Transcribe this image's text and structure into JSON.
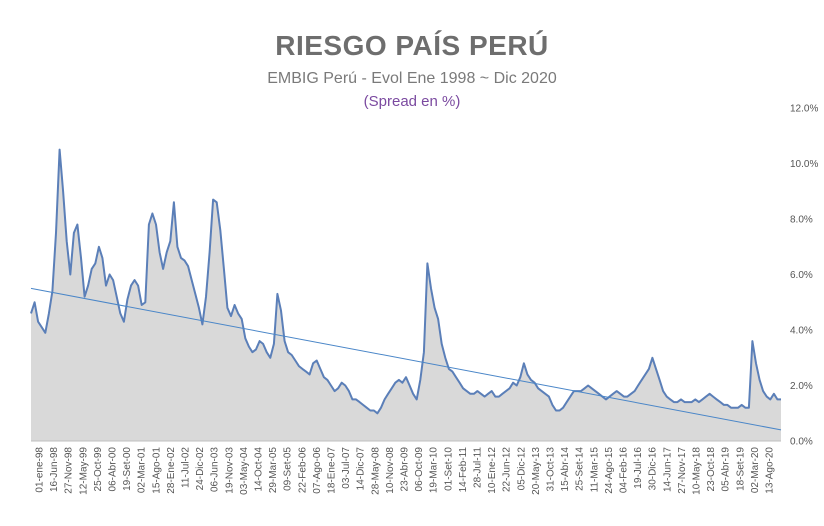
{
  "chart_data": {
    "type": "area",
    "title": "RIESGO PAÍS PERÚ",
    "subtitle": "EMBIG Perú - Evol Ene 1998 ~ Dic 2020",
    "subtitle2": "(Spread en %)",
    "xlabel": "",
    "ylabel": "",
    "ylim": [
      0,
      12
    ],
    "y_ticks": [
      "0.0%",
      "2.0%",
      "4.0%",
      "6.0%",
      "8.0%",
      "10.0%",
      "12.0%"
    ],
    "x_ticks": [
      "01-ene-98",
      "16-Jun-98",
      "27-Nov-98",
      "12-May-99",
      "25-Oct-99",
      "06-Abr-00",
      "19-Set-00",
      "02-Mar-01",
      "15-Ago-01",
      "28-Ene-02",
      "11-Jul-02",
      "24-Dic-02",
      "06-Jun-03",
      "19-Nov-03",
      "03-May-04",
      "14-Oct-04",
      "29-Mar-05",
      "09-Set-05",
      "22-Feb-06",
      "07-Ago-06",
      "18-Ene-07",
      "03-Jul-07",
      "14-Dic-07",
      "28-May-08",
      "10-Nov-08",
      "23-Abr-09",
      "06-Oct-09",
      "19-Mar-10",
      "01-Set-10",
      "14-Feb-11",
      "28-Jul-11",
      "10-Ene-12",
      "22-Jun-12",
      "05-Dic-12",
      "20-May-13",
      "31-Oct-13",
      "15-Abr-14",
      "25-Set-14",
      "11-Mar-15",
      "24-Ago-15",
      "04-Feb-16",
      "19-Jul-16",
      "30-Dic-16",
      "14-Jun-17",
      "27-Nov-17",
      "10-May-18",
      "23-Oct-18",
      "05-Abr-19",
      "18-Set-19",
      "02-Mar-20",
      "13-Ago-20"
    ],
    "trendline": {
      "start": 5.5,
      "end": 0.4
    },
    "grid": false,
    "legend": "none",
    "colors": {
      "line": "#5b7fb8",
      "area": "#d9d9d9",
      "trend": "#4a86c8"
    },
    "series": [
      {
        "values": [
          4.6,
          5.0,
          4.3,
          4.1,
          3.9,
          4.6,
          5.4,
          7.5,
          10.5,
          9.0,
          7.2,
          6.0,
          7.5,
          7.8,
          6.6,
          5.2,
          5.6,
          6.2,
          6.4,
          7.0,
          6.6,
          5.6,
          6.0,
          5.8,
          5.2,
          4.6,
          4.3,
          5.1,
          5.6,
          5.8,
          5.6,
          4.9,
          5.0,
          7.8,
          8.2,
          7.8,
          6.8,
          6.2,
          6.8,
          7.2,
          8.6,
          7.0,
          6.6,
          6.5,
          6.3,
          5.8,
          5.3,
          4.8,
          4.2,
          5.2,
          6.8,
          8.7,
          8.6,
          7.6,
          6.2,
          4.8,
          4.5,
          4.9,
          4.6,
          4.4,
          3.7,
          3.4,
          3.2,
          3.3,
          3.6,
          3.5,
          3.2,
          3.0,
          3.5,
          5.3,
          4.7,
          3.6,
          3.2,
          3.1,
          2.9,
          2.7,
          2.6,
          2.5,
          2.4,
          2.8,
          2.9,
          2.6,
          2.3,
          2.2,
          2.0,
          1.8,
          1.9,
          2.1,
          2.0,
          1.8,
          1.5,
          1.5,
          1.4,
          1.3,
          1.2,
          1.1,
          1.1,
          1.0,
          1.2,
          1.5,
          1.7,
          1.9,
          2.1,
          2.2,
          2.1,
          2.3,
          2.0,
          1.7,
          1.5,
          2.2,
          3.2,
          6.4,
          5.5,
          4.8,
          4.4,
          3.5,
          3.0,
          2.6,
          2.5,
          2.3,
          2.1,
          1.9,
          1.8,
          1.7,
          1.7,
          1.8,
          1.7,
          1.6,
          1.7,
          1.8,
          1.6,
          1.6,
          1.7,
          1.8,
          1.9,
          2.1,
          2.0,
          2.3,
          2.8,
          2.4,
          2.2,
          2.1,
          1.9,
          1.8,
          1.7,
          1.6,
          1.3,
          1.1,
          1.1,
          1.2,
          1.4,
          1.6,
          1.8,
          1.8,
          1.8,
          1.9,
          2.0,
          1.9,
          1.8,
          1.7,
          1.6,
          1.5,
          1.6,
          1.7,
          1.8,
          1.7,
          1.6,
          1.6,
          1.7,
          1.8,
          2.0,
          2.2,
          2.4,
          2.6,
          3.0,
          2.6,
          2.2,
          1.8,
          1.6,
          1.5,
          1.4,
          1.4,
          1.5,
          1.4,
          1.4,
          1.4,
          1.5,
          1.4,
          1.5,
          1.6,
          1.7,
          1.6,
          1.5,
          1.4,
          1.3,
          1.3,
          1.2,
          1.2,
          1.2,
          1.3,
          1.2,
          1.2,
          3.6,
          2.8,
          2.2,
          1.8,
          1.6,
          1.5,
          1.7,
          1.5,
          1.5
        ]
      }
    ]
  }
}
